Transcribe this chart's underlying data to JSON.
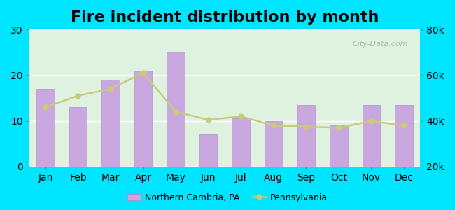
{
  "title": "Fire incident distribution by month",
  "months": [
    "Jan",
    "Feb",
    "Mar",
    "Apr",
    "May",
    "Jun",
    "Jul",
    "Aug",
    "Sep",
    "Oct",
    "Nov",
    "Dec"
  ],
  "bar_values": [
    17,
    13,
    19,
    21,
    25,
    7,
    10.5,
    10,
    13.5,
    9,
    13.5,
    13.5
  ],
  "line_values": [
    46000,
    51000,
    54000,
    61000,
    44000,
    40500,
    42000,
    38000,
    37500,
    37000,
    40000,
    38000
  ],
  "bar_color": "#c9a8e0",
  "bar_edgecolor": "#b090cc",
  "line_color": "#c8cc7a",
  "line_marker": "o",
  "line_marker_color": "#c8cc7a",
  "yleft_min": 0,
  "yleft_max": 30,
  "yright_min": 20000,
  "yright_max": 80000,
  "background_outer": "#00e5ff",
  "background_inner_top": "#e8f4e8",
  "background_inner_bottom": "#d0f0e8",
  "grid_color": "#ffffff",
  "title_fontsize": 16,
  "axis_fontsize": 10,
  "legend_labels": [
    "Northern Cambria, PA",
    "Pennsylvania"
  ],
  "watermark": "City-Data.com"
}
